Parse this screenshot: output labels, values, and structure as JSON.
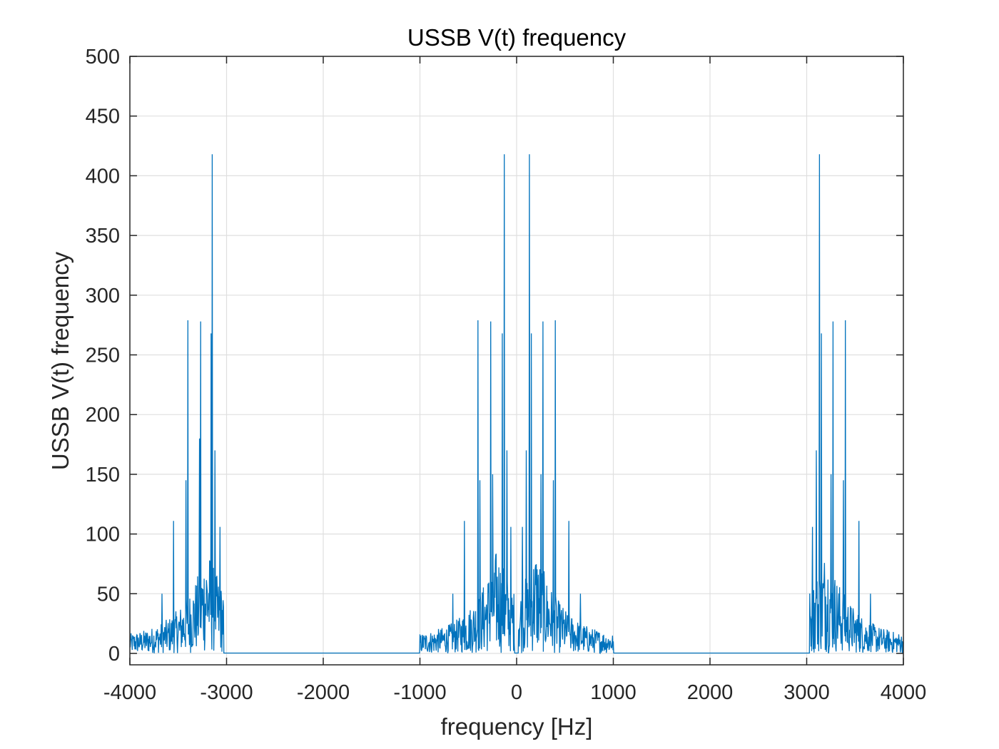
{
  "chart_data": {
    "type": "line",
    "title": "USSB V(t) frequency",
    "xlabel": "frequency [Hz]",
    "ylabel": "USSB V(t) frequency",
    "xlim": [
      -4000,
      4000
    ],
    "ylim": [
      0,
      500
    ],
    "xticks": [
      -4000,
      -3000,
      -2000,
      -1000,
      0,
      1000,
      2000,
      3000,
      4000
    ],
    "yticks": [
      0,
      50,
      100,
      150,
      200,
      250,
      300,
      350,
      400,
      450,
      500
    ],
    "xtick_labels": [
      "-4000",
      "-3000",
      "-2000",
      "-1000",
      "0",
      "1000",
      "2000",
      "3000",
      "4000"
    ],
    "ytick_labels": [
      "0",
      "50",
      "100",
      "150",
      "200",
      "250",
      "300",
      "350",
      "400",
      "450",
      "500"
    ],
    "grid": true,
    "series_color": "#0072BD",
    "series": [
      {
        "peaks": [
          {
            "x": -3150,
            "y": 418
          },
          {
            "x": -3160,
            "y": 268
          },
          {
            "x": -3120,
            "y": 170
          },
          {
            "x": -3270,
            "y": 278
          },
          {
            "x": -3280,
            "y": 180
          },
          {
            "x": -3400,
            "y": 279
          },
          {
            "x": -3420,
            "y": 145
          },
          {
            "x": -3550,
            "y": 111
          },
          {
            "x": -3670,
            "y": 50
          },
          {
            "x": -3070,
            "y": 106
          },
          {
            "x": -130,
            "y": 418
          },
          {
            "x": -150,
            "y": 268
          },
          {
            "x": -100,
            "y": 170
          },
          {
            "x": -270,
            "y": 278
          },
          {
            "x": -250,
            "y": 150
          },
          {
            "x": -400,
            "y": 279
          },
          {
            "x": -380,
            "y": 145
          },
          {
            "x": -540,
            "y": 111
          },
          {
            "x": -660,
            "y": 50
          },
          {
            "x": -60,
            "y": 106
          },
          {
            "x": 130,
            "y": 418
          },
          {
            "x": 150,
            "y": 268
          },
          {
            "x": 100,
            "y": 170
          },
          {
            "x": 270,
            "y": 278
          },
          {
            "x": 250,
            "y": 150
          },
          {
            "x": 400,
            "y": 279
          },
          {
            "x": 380,
            "y": 145
          },
          {
            "x": 540,
            "y": 111
          },
          {
            "x": 660,
            "y": 50
          },
          {
            "x": 60,
            "y": 106
          },
          {
            "x": 3130,
            "y": 418
          },
          {
            "x": 3150,
            "y": 268
          },
          {
            "x": 3100,
            "y": 170
          },
          {
            "x": 3270,
            "y": 278
          },
          {
            "x": 3250,
            "y": 150
          },
          {
            "x": 3400,
            "y": 279
          },
          {
            "x": 3380,
            "y": 145
          },
          {
            "x": 3540,
            "y": 111
          },
          {
            "x": 3660,
            "y": 50
          },
          {
            "x": 3060,
            "y": 106
          }
        ],
        "bands": [
          {
            "from": -4000,
            "to": -3030,
            "center": -3200
          },
          {
            "from": -1000,
            "to": -20,
            "center": -200
          },
          {
            "from": 20,
            "to": 1000,
            "center": 200
          },
          {
            "from": 3030,
            "to": 4000,
            "center": 3200
          }
        ]
      }
    ]
  }
}
